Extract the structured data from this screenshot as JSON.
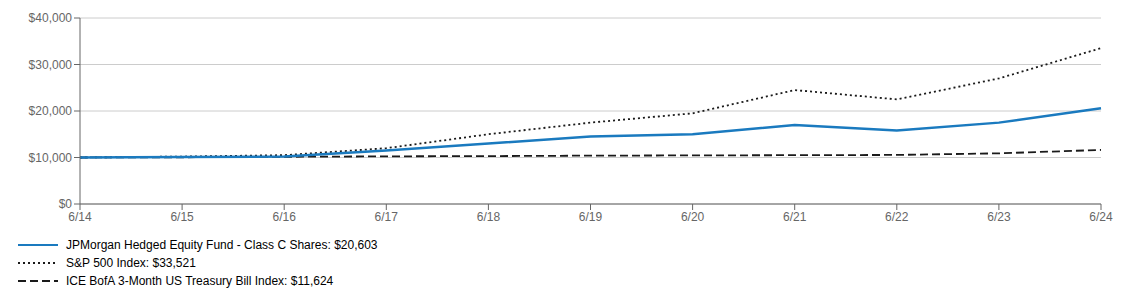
{
  "chart_data": {
    "type": "line",
    "title": "",
    "categories": [
      "6/14",
      "6/15",
      "6/16",
      "6/17",
      "6/18",
      "6/19",
      "6/20",
      "6/21",
      "6/22",
      "6/23",
      "6/24"
    ],
    "series": [
      {
        "name": "JPMorgan Hedged Equity Fund - Class C Shares: $20,603",
        "color": "#1a7abf",
        "line_style": "solid",
        "values": [
          10000,
          10100,
          10200,
          11500,
          13000,
          14500,
          15000,
          17000,
          15800,
          17500,
          20603
        ]
      },
      {
        "name": "S&P 500 Index: $33,521",
        "color": "#1a1a1a",
        "line_style": "dotted",
        "values": [
          10000,
          10200,
          10500,
          12000,
          15000,
          17500,
          19500,
          24500,
          22500,
          27000,
          33521
        ]
      },
      {
        "name": "ICE BofA 3-Month US Treasury Bill Index: $11,624",
        "color": "#1a1a1a",
        "line_style": "dashed",
        "values": [
          10000,
          10050,
          10150,
          10250,
          10300,
          10400,
          10450,
          10500,
          10550,
          10900,
          11624
        ]
      }
    ],
    "ylim": [
      0,
      40000
    ],
    "yticks": [
      {
        "value": 0,
        "label": "$0"
      },
      {
        "value": 10000,
        "label": "$10,000"
      },
      {
        "value": 20000,
        "label": "$20,000"
      },
      {
        "value": 30000,
        "label": "$30,000"
      },
      {
        "value": 40000,
        "label": "$40,000"
      }
    ],
    "grid": true,
    "legend": "bottom"
  }
}
